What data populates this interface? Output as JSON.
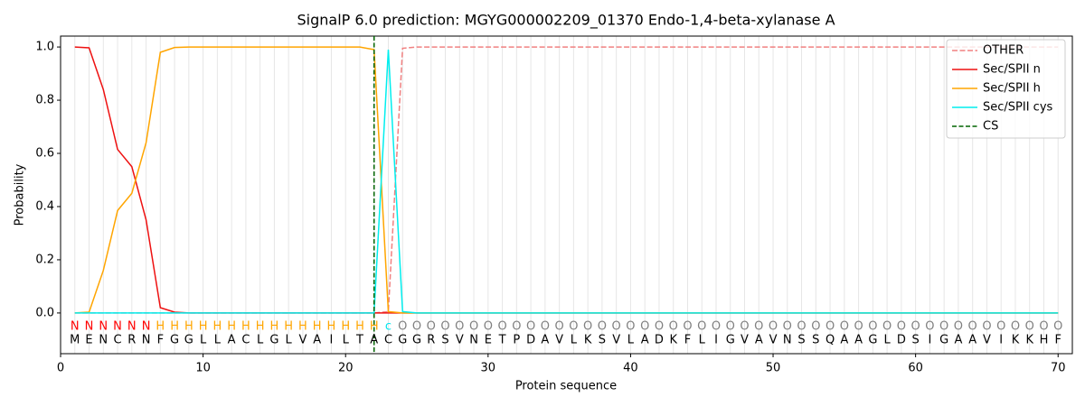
{
  "chart_data": {
    "type": "line",
    "title": "SignalP 6.0 prediction: MGYG000002209_01370 Endo-1,4-beta-xylanase A",
    "xlabel": "Protein sequence",
    "ylabel": "Probability",
    "xlim": [
      0,
      71
    ],
    "ylim": [
      -0.153,
      1.041
    ],
    "xticks": [
      0,
      10,
      20,
      30,
      40,
      50,
      60,
      70
    ],
    "yticks": [
      {
        "value": 0,
        "label": "0.0"
      },
      0.2,
      0.4,
      0.6,
      0.8,
      {
        "value": 1,
        "label": "1.0"
      }
    ],
    "legend": "upper right",
    "x": [
      1,
      2,
      3,
      4,
      5,
      6,
      7,
      8,
      9,
      10,
      11,
      12,
      13,
      14,
      15,
      16,
      17,
      18,
      19,
      20,
      21,
      22,
      23,
      24,
      25,
      26,
      27,
      28,
      29,
      30,
      31,
      32,
      33,
      34,
      35,
      36,
      37,
      38,
      39,
      40,
      41,
      42,
      43,
      44,
      45,
      46,
      47,
      48,
      49,
      50,
      51,
      52,
      53,
      54,
      55,
      56,
      57,
      58,
      59,
      60,
      61,
      62,
      63,
      64,
      65,
      66,
      67,
      68,
      69,
      70
    ],
    "residues": [
      "M",
      "E",
      "N",
      "C",
      "R",
      "N",
      "F",
      "G",
      "G",
      "L",
      "L",
      "A",
      "C",
      "L",
      "G",
      "L",
      "V",
      "A",
      "I",
      "L",
      "T",
      "A",
      "C",
      "G",
      "G",
      "R",
      "S",
      "V",
      "N",
      "E",
      "T",
      "P",
      "D",
      "A",
      "V",
      "L",
      "K",
      "S",
      "V",
      "L",
      "A",
      "D",
      "K",
      "F",
      "L",
      "I",
      "G",
      "V",
      "A",
      "V",
      "N",
      "S",
      "S",
      "Q",
      "A",
      "A",
      "G",
      "L",
      "D",
      "S",
      "I",
      "G",
      "A",
      "A",
      "V",
      "I",
      "K",
      "K",
      "H",
      "F"
    ],
    "labels": [
      "N",
      "N",
      "N",
      "N",
      "N",
      "N",
      "H",
      "H",
      "H",
      "H",
      "H",
      "H",
      "H",
      "H",
      "H",
      "H",
      "H",
      "H",
      "H",
      "H",
      "H",
      "H",
      "c",
      "O",
      "O",
      "O",
      "O",
      "O",
      "O",
      "O",
      "O",
      "O",
      "O",
      "O",
      "O",
      "O",
      "O",
      "O",
      "O",
      "O",
      "O",
      "O",
      "O",
      "O",
      "O",
      "O",
      "O",
      "O",
      "O",
      "O",
      "O",
      "O",
      "O",
      "O",
      "O",
      "O",
      "O",
      "O",
      "O",
      "O",
      "O",
      "O",
      "O",
      "O",
      "O",
      "O",
      "O",
      "O",
      "O",
      "O"
    ],
    "label_colors": {
      "N": "#ff0000",
      "H": "#ffa500",
      "c": "#00e5ee",
      "O": "#808080"
    },
    "series": [
      {
        "name": "OTHER",
        "color": "#f08080",
        "dash": true,
        "values": [
          0,
          0,
          0,
          0,
          0,
          0,
          0,
          0,
          0,
          0,
          0,
          0,
          0,
          0,
          0,
          0,
          0,
          0,
          0,
          0,
          0,
          0,
          0.005,
          0.995,
          1,
          1,
          1,
          1,
          1,
          1,
          1,
          1,
          1,
          1,
          1,
          1,
          1,
          1,
          1,
          1,
          1,
          1,
          1,
          1,
          1,
          1,
          1,
          1,
          1,
          1,
          1,
          1,
          1,
          1,
          1,
          1,
          1,
          1,
          1,
          1,
          1,
          1,
          1,
          1,
          1,
          1,
          1,
          1,
          1,
          1
        ]
      },
      {
        "name": "Sec/SPII n",
        "color": "#ee1111",
        "dash": false,
        "values": [
          1,
          0.997,
          0.84,
          0.615,
          0.55,
          0.35,
          0.02,
          0.003,
          0,
          0,
          0,
          0,
          0,
          0,
          0,
          0,
          0,
          0,
          0,
          0,
          0,
          0,
          0,
          0,
          0,
          0,
          0,
          0,
          0,
          0,
          0,
          0,
          0,
          0,
          0,
          0,
          0,
          0,
          0,
          0,
          0,
          0,
          0,
          0,
          0,
          0,
          0,
          0,
          0,
          0,
          0,
          0,
          0,
          0,
          0,
          0,
          0,
          0,
          0,
          0,
          0,
          0,
          0,
          0,
          0,
          0,
          0,
          0,
          0,
          0
        ]
      },
      {
        "name": "Sec/SPII h",
        "color": "#ffa500",
        "dash": false,
        "values": [
          0,
          0.003,
          0.16,
          0.385,
          0.45,
          0.64,
          0.98,
          0.998,
          1,
          1,
          1,
          1,
          1,
          1,
          1,
          1,
          1,
          1,
          1,
          1,
          1,
          0.99,
          0.005,
          0,
          0,
          0,
          0,
          0,
          0,
          0,
          0,
          0,
          0,
          0,
          0,
          0,
          0,
          0,
          0,
          0,
          0,
          0,
          0,
          0,
          0,
          0,
          0,
          0,
          0,
          0,
          0,
          0,
          0,
          0,
          0,
          0,
          0,
          0,
          0,
          0,
          0,
          0,
          0,
          0,
          0,
          0,
          0,
          0,
          0,
          0
        ]
      },
      {
        "name": "Sec/SPII cys",
        "color": "#00eeee",
        "dash": false,
        "values": [
          0,
          0,
          0,
          0,
          0,
          0,
          0,
          0,
          0,
          0,
          0,
          0,
          0,
          0,
          0,
          0,
          0,
          0,
          0,
          0,
          0,
          0,
          0.99,
          0.005,
          0,
          0,
          0,
          0,
          0,
          0,
          0,
          0,
          0,
          0,
          0,
          0,
          0,
          0,
          0,
          0,
          0,
          0,
          0,
          0,
          0,
          0,
          0,
          0,
          0,
          0,
          0,
          0,
          0,
          0,
          0,
          0,
          0,
          0,
          0,
          0,
          0,
          0,
          0,
          0,
          0,
          0,
          0,
          0,
          0,
          0
        ]
      }
    ],
    "cs": {
      "name": "CS",
      "color": "#006400",
      "x": 22
    }
  }
}
